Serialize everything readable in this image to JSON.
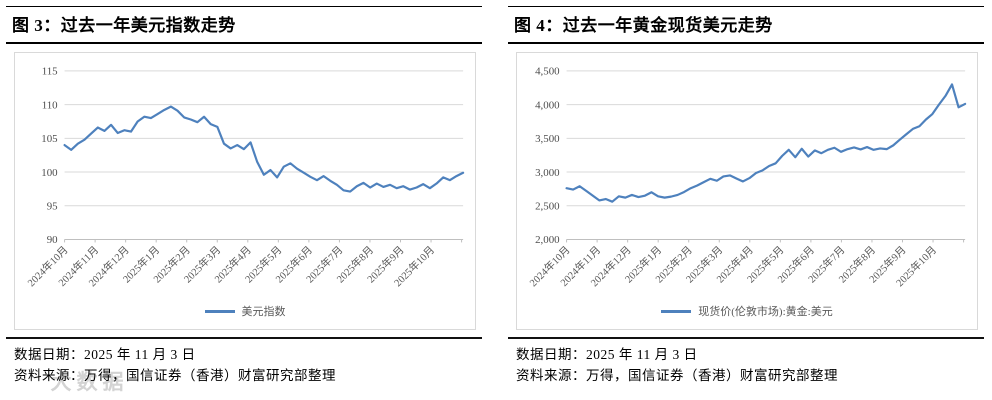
{
  "panels": [
    {
      "title": "图 3：过去一年美元指数走势",
      "footer_date": "数据日期：2025 年 11 月 3 日",
      "footer_source": "资料来源：万得，国信证券（香港）财富研究部整理"
    },
    {
      "title": "图 4：过去一年黄金现货美元走势",
      "footer_date": "数据日期：2025 年 11 月 3 日",
      "footer_source": "资料来源：万得，国信证券（香港）财富研究部整理"
    }
  ],
  "watermark": "大数据",
  "chart_data": [
    {
      "type": "line",
      "title": "过去一年美元指数走势",
      "legend": "美元指数",
      "legend_position": "bottom",
      "grid": true,
      "xlabel": "",
      "ylabel": "",
      "ylim": [
        90,
        115
      ],
      "ytick_labels": [
        "115",
        "110",
        "105",
        "100",
        "95",
        "90"
      ],
      "categories": [
        "2024年10月",
        "2024年11月",
        "2024年12月",
        "2025年1月",
        "2025年2月",
        "2025年3月",
        "2025年4月",
        "2025年5月",
        "2025年6月",
        "2025年7月",
        "2025年8月",
        "2025年9月",
        "2025年10月"
      ],
      "values": [
        104.0,
        103.3,
        104.2,
        104.8,
        105.7,
        106.6,
        106.1,
        107.0,
        105.8,
        106.2,
        106.0,
        107.5,
        108.2,
        108.0,
        108.6,
        109.2,
        109.7,
        109.1,
        108.1,
        107.8,
        107.4,
        108.2,
        107.1,
        106.7,
        104.2,
        103.5,
        104.0,
        103.4,
        104.4,
        101.5,
        99.6,
        100.3,
        99.2,
        100.8,
        101.3,
        100.5,
        99.9,
        99.3,
        98.8,
        99.4,
        98.7,
        98.1,
        97.3,
        97.1,
        97.9,
        98.4,
        97.7,
        98.3,
        97.8,
        98.1,
        97.6,
        97.9,
        97.4,
        97.7,
        98.2,
        97.6,
        98.3,
        99.2,
        98.8,
        99.4,
        99.9
      ],
      "line_color": "#4E81BD",
      "grid_color": "#D9D9D9",
      "axis_color": "#BFBFBF",
      "tick_color": "#595959"
    },
    {
      "type": "line",
      "title": "过去一年黄金现货美元走势",
      "legend": "现货价(伦敦市场):黄金:美元",
      "legend_position": "bottom",
      "grid": true,
      "xlabel": "",
      "ylabel": "",
      "ylim": [
        2000,
        4500
      ],
      "ytick_labels": [
        "4,500",
        "4,000",
        "3,500",
        "3,000",
        "2,500",
        "2,000"
      ],
      "categories": [
        "2024年10月",
        "2024年11月",
        "2024年12月",
        "2025年1月",
        "2025年2月",
        "2025年3月",
        "2025年4月",
        "2025年5月",
        "2025年6月",
        "2025年7月",
        "2025年8月",
        "2025年9月",
        "2025年10月"
      ],
      "values": [
        2760,
        2740,
        2790,
        2720,
        2650,
        2580,
        2600,
        2560,
        2640,
        2620,
        2660,
        2630,
        2650,
        2700,
        2640,
        2620,
        2635,
        2660,
        2705,
        2760,
        2800,
        2850,
        2900,
        2870,
        2935,
        2950,
        2905,
        2860,
        2910,
        2985,
        3025,
        3090,
        3130,
        3240,
        3330,
        3220,
        3345,
        3230,
        3320,
        3280,
        3330,
        3360,
        3300,
        3340,
        3365,
        3335,
        3370,
        3330,
        3350,
        3340,
        3395,
        3480,
        3560,
        3640,
        3680,
        3780,
        3860,
        4000,
        4130,
        4300,
        3960,
        4010
      ],
      "line_color": "#4E81BD",
      "grid_color": "#D9D9D9",
      "axis_color": "#BFBFBF",
      "tick_color": "#595959"
    }
  ]
}
